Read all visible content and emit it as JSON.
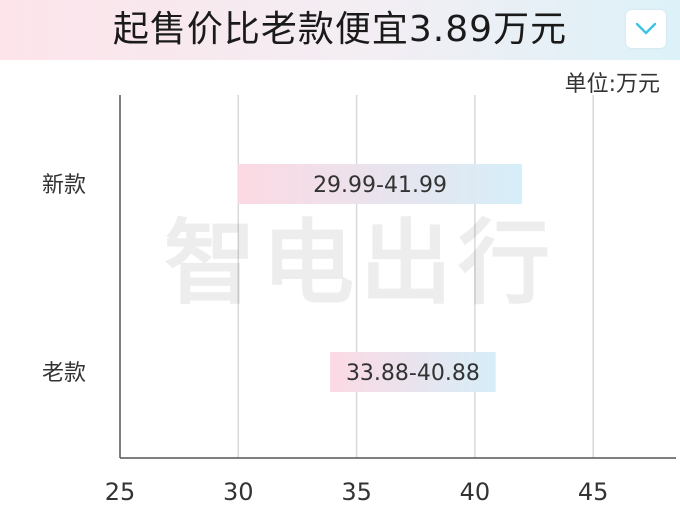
{
  "header": {
    "title": "起售价比老款便宜3.89万元",
    "accent_gradient": [
      "#fce4ea",
      "#dcf2f8"
    ],
    "collapse_icon": "chevron-down-icon",
    "collapse_icon_color": "#3ec3e3"
  },
  "unit": "单位:万元",
  "watermark": "智电出行",
  "chart_data": {
    "type": "bar",
    "orientation": "horizontal-range",
    "categories": [
      "新款",
      "老款"
    ],
    "series": [
      {
        "values": [
          [
            29.99,
            41.99
          ],
          [
            33.88,
            40.88
          ]
        ]
      }
    ],
    "bar_labels": [
      "29.99-41.99",
      "33.88-40.88"
    ],
    "xlim": [
      25,
      48.5
    ],
    "xticks": [
      25,
      30,
      35,
      40,
      45
    ],
    "grid": "vertical",
    "bar_gradient": [
      "#fcd9e3",
      "#d6eef8"
    ],
    "grid_color": "#d8d8d8",
    "axis_color": "#555555"
  }
}
